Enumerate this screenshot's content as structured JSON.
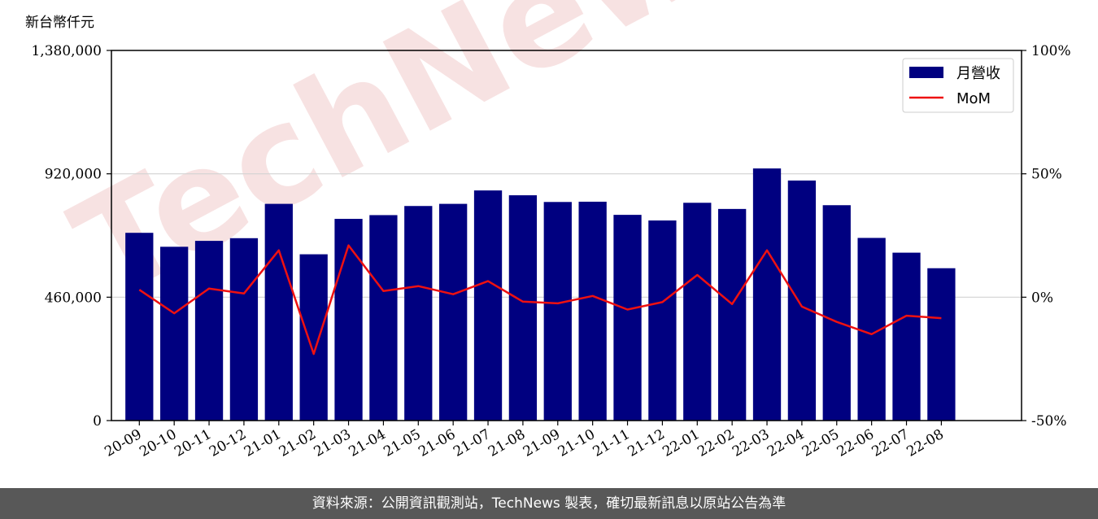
{
  "chart_data": {
    "type": "bar",
    "y_unit_label": "新台幣仟元",
    "categories": [
      "20-09",
      "20-10",
      "20-11",
      "20-12",
      "21-01",
      "21-02",
      "21-03",
      "21-04",
      "21-05",
      "21-06",
      "21-07",
      "21-08",
      "21-09",
      "21-10",
      "21-11",
      "21-12",
      "22-01",
      "22-02",
      "22-03",
      "22-04",
      "22-05",
      "22-06",
      "22-07",
      "22-08"
    ],
    "series": [
      {
        "name": "月營收",
        "type": "bar",
        "axis": "left",
        "color": "#000080",
        "values": [
          700000,
          648000,
          670000,
          680000,
          808000,
          620000,
          752000,
          766000,
          800000,
          808000,
          858000,
          840000,
          815000,
          816000,
          767000,
          746000,
          812000,
          789000,
          940000,
          895000,
          803000,
          681000,
          626000,
          568000
        ]
      },
      {
        "name": "MoM",
        "type": "line",
        "axis": "right",
        "color": "#ee1111",
        "values": [
          3.0,
          -6.5,
          3.5,
          1.5,
          19.0,
          -23.0,
          21.0,
          2.5,
          4.5,
          1.2,
          6.5,
          -1.8,
          -2.5,
          0.5,
          -5.0,
          -2.0,
          9.0,
          -2.8,
          19.0,
          -3.8,
          -10.0,
          -15.0,
          -7.5,
          -8.5
        ]
      }
    ],
    "y_left": {
      "lim": [
        0,
        1380000
      ],
      "ticks": [
        0,
        460000,
        920000,
        1380000
      ],
      "tick_labels": [
        "0",
        "460,000",
        "920,000",
        "1,380,000"
      ]
    },
    "y_right": {
      "lim": [
        -50,
        100
      ],
      "ticks": [
        -50,
        0,
        50,
        100
      ],
      "tick_labels": [
        "-50%",
        "0%",
        "50%",
        "100%"
      ]
    },
    "grid": "horizontal",
    "legend": {
      "position": "top-right",
      "entries": [
        "月營收",
        "MoM"
      ]
    },
    "watermark": "TechNews"
  },
  "footer": {
    "source_text": "資料來源：公開資訊觀測站，TechNews 製表，確切最新訊息以原站公告為準"
  }
}
